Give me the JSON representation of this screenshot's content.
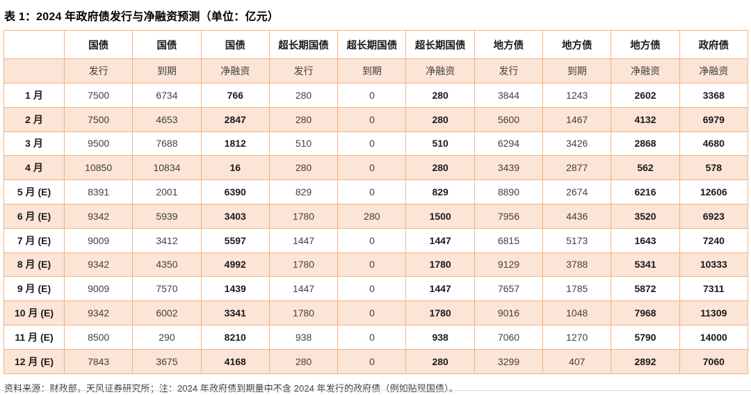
{
  "page": {
    "title": "表 1：2024 年政府债发行与净融资预测（单位：亿元）",
    "footnote": "资料来源：财政部，天风证券研究所；注：2024 年政府债到期量中不含 2024 年发行的政府债（例如贴现国债）。"
  },
  "colors": {
    "table_border": "#F4B183",
    "row_shade": "#FCE4D6",
    "value_text": "#404040",
    "emphasis_text": "#1A1A1A"
  },
  "chart_data": {
    "type": "table",
    "title": "表 1：2024 年政府债发行与净融资预测（单位：亿元）",
    "column_groups": [
      {
        "label": "",
        "metric": ""
      },
      {
        "label": "国债",
        "metric": "发行"
      },
      {
        "label": "国债",
        "metric": "到期"
      },
      {
        "label": "国债",
        "metric": "净融资"
      },
      {
        "label": "超长期国债",
        "metric": "发行"
      },
      {
        "label": "超长期国债",
        "metric": "到期"
      },
      {
        "label": "超长期国债",
        "metric": "净融资"
      },
      {
        "label": "地方债",
        "metric": "发行"
      },
      {
        "label": "地方债",
        "metric": "到期"
      },
      {
        "label": "地方债",
        "metric": "净融资"
      },
      {
        "label": "政府债",
        "metric": "净融资"
      }
    ],
    "bold_value_columns": [
      2,
      5,
      8,
      9
    ],
    "rows": [
      {
        "month": "1 月",
        "values": [
          "7500",
          "6734",
          "766",
          "280",
          "0",
          "280",
          "3844",
          "1243",
          "2602",
          "3368"
        ]
      },
      {
        "month": "2 月",
        "values": [
          "7500",
          "4653",
          "2847",
          "280",
          "0",
          "280",
          "5600",
          "1467",
          "4132",
          "6979"
        ]
      },
      {
        "month": "3 月",
        "values": [
          "9500",
          "7688",
          "1812",
          "510",
          "0",
          "510",
          "6294",
          "3426",
          "2868",
          "4680"
        ]
      },
      {
        "month": "4 月",
        "values": [
          "10850",
          "10834",
          "16",
          "280",
          "0",
          "280",
          "3439",
          "2877",
          "562",
          "578"
        ]
      },
      {
        "month": "5 月 (E)",
        "values": [
          "8391",
          "2001",
          "6390",
          "829",
          "0",
          "829",
          "8890",
          "2674",
          "6216",
          "12606"
        ]
      },
      {
        "month": "6 月 (E)",
        "values": [
          "9342",
          "5939",
          "3403",
          "1780",
          "280",
          "1500",
          "7956",
          "4436",
          "3520",
          "6923"
        ]
      },
      {
        "month": "7 月 (E)",
        "values": [
          "9009",
          "3412",
          "5597",
          "1447",
          "0",
          "1447",
          "6815",
          "5173",
          "1643",
          "7240"
        ]
      },
      {
        "month": "8 月 (E)",
        "values": [
          "9342",
          "4350",
          "4992",
          "1780",
          "0",
          "1780",
          "9129",
          "3788",
          "5341",
          "10333"
        ]
      },
      {
        "month": "9 月 (E)",
        "values": [
          "9009",
          "7570",
          "1439",
          "1447",
          "0",
          "1447",
          "7657",
          "1785",
          "5872",
          "7311"
        ]
      },
      {
        "month": "10 月 (E)",
        "values": [
          "9342",
          "6002",
          "3341",
          "1780",
          "0",
          "1780",
          "9016",
          "1048",
          "7968",
          "11309"
        ]
      },
      {
        "month": "11 月 (E)",
        "values": [
          "8500",
          "290",
          "8210",
          "938",
          "0",
          "938",
          "7060",
          "1270",
          "5790",
          "14000"
        ]
      },
      {
        "month": "12 月 (E)",
        "values": [
          "7843",
          "3675",
          "4168",
          "280",
          "0",
          "280",
          "3299",
          "407",
          "2892",
          "7060"
        ]
      }
    ]
  }
}
